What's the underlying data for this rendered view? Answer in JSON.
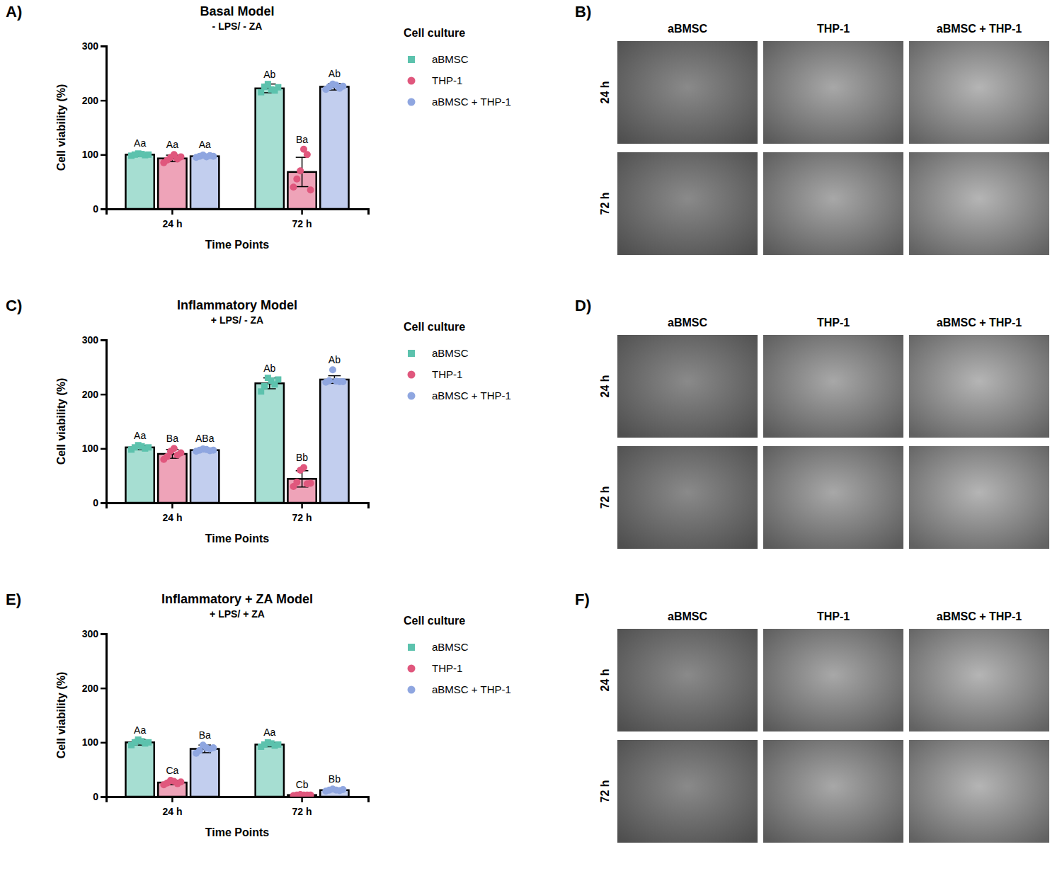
{
  "chart_data": [
    {
      "type": "bar",
      "letter": "A)",
      "title": "Basal Model",
      "subtitle": "- LPS/ - ZA",
      "x_label": "Time Points",
      "y_label": "Cell viability (%)",
      "categories": [
        "24 h",
        "72 h"
      ],
      "ylim": [
        0,
        300
      ],
      "yticks": [
        0,
        100,
        200,
        300
      ],
      "grid": false,
      "legend": "right",
      "legend_title": "Cell culture",
      "series": [
        {
          "name": "aBMSC",
          "color": "#5cc2ad",
          "marker": "square",
          "values": [
            100,
            222
          ],
          "errors": [
            3,
            8
          ],
          "group_labels": [
            "Aa",
            "Ab"
          ],
          "points": [
            [
              98,
              100,
              102,
              101,
              99,
              100
            ],
            [
              215,
              225,
              230,
              220,
              218,
              224
            ]
          ]
        },
        {
          "name": "THP-1",
          "color": "#e0577d",
          "marker": "circle",
          "values": [
            93,
            68
          ],
          "errors": [
            6,
            27
          ],
          "group_labels": [
            "Aa",
            "Ba"
          ],
          "points": [
            [
              85,
              90,
              95,
              100,
              92,
              96
            ],
            [
              40,
              55,
              70,
              110,
              100,
              35
            ]
          ]
        },
        {
          "name": "aBMSC + THP-1",
          "color": "#8fa6e0",
          "marker": "circle",
          "values": [
            97,
            225
          ],
          "errors": [
            3,
            6
          ],
          "group_labels": [
            "Aa",
            "Ab"
          ],
          "points": [
            [
              95,
              97,
              99,
              96,
              98,
              97
            ],
            [
              220,
              225,
              230,
              228,
              222,
              226
            ]
          ]
        }
      ]
    },
    {
      "type": "bar",
      "letter": "C)",
      "title": "Inflammatory Model",
      "subtitle": "+ LPS/ - ZA",
      "x_label": "Time Points",
      "y_label": "Cell viability (%)",
      "categories": [
        "24 h",
        "72 h"
      ],
      "ylim": [
        0,
        300
      ],
      "yticks": [
        0,
        100,
        200,
        300
      ],
      "grid": false,
      "legend": "right",
      "legend_title": "Cell culture",
      "series": [
        {
          "name": "aBMSC",
          "color": "#5cc2ad",
          "marker": "square",
          "values": [
            102,
            220
          ],
          "errors": [
            4,
            10
          ],
          "group_labels": [
            "Aa",
            "Ab"
          ],
          "points": [
            [
              98,
              102,
              106,
              104,
              100,
              102
            ],
            [
              205,
              215,
              230,
              225,
              218,
              227
            ]
          ]
        },
        {
          "name": "THP-1",
          "color": "#e0577d",
          "marker": "circle",
          "values": [
            90,
            44
          ],
          "errors": [
            8,
            15
          ],
          "group_labels": [
            "Ba",
            "Bb"
          ],
          "points": [
            [
              80,
              85,
              95,
              100,
              88,
              92
            ],
            [
              30,
              38,
              60,
              65,
              35,
              36
            ]
          ]
        },
        {
          "name": "aBMSC + THP-1",
          "color": "#8fa6e0",
          "marker": "circle",
          "values": [
            97,
            227
          ],
          "errors": [
            3,
            7
          ],
          "group_labels": [
            "ABa",
            "Ab"
          ],
          "points": [
            [
              95,
              97,
              99,
              98,
              96,
              97
            ],
            [
              222,
              225,
              245,
              224,
              223,
              223
            ]
          ]
        }
      ]
    },
    {
      "type": "bar",
      "letter": "E)",
      "title": "Inflammatory + ZA Model",
      "subtitle": "+ LPS/ + ZA",
      "x_label": "Time Points",
      "y_label": "Cell viability (%)",
      "categories": [
        "24 h",
        "72 h"
      ],
      "ylim": [
        0,
        300
      ],
      "yticks": [
        0,
        100,
        200,
        300
      ],
      "grid": false,
      "legend": "right",
      "legend_title": "Cell culture",
      "series": [
        {
          "name": "aBMSC",
          "color": "#5cc2ad",
          "marker": "square",
          "values": [
            100,
            96
          ],
          "errors": [
            5,
            4
          ],
          "group_labels": [
            "Aa",
            "Aa"
          ],
          "points": [
            [
              95,
              100,
              105,
              102,
              98,
              100
            ],
            [
              92,
              96,
              100,
              98,
              94,
              96
            ]
          ]
        },
        {
          "name": "THP-1",
          "color": "#e0577d",
          "marker": "circle",
          "values": [
            26,
            3
          ],
          "errors": [
            4,
            1
          ],
          "group_labels": [
            "Ca",
            "Cb"
          ],
          "points": [
            [
              22,
              25,
              30,
              28,
              24,
              27
            ],
            [
              2,
              3,
              4,
              3,
              3,
              3
            ]
          ]
        },
        {
          "name": "aBMSC + THP-1",
          "color": "#8fa6e0",
          "marker": "circle",
          "values": [
            88,
            12
          ],
          "errors": [
            7,
            2
          ],
          "group_labels": [
            "Ba",
            "Bb"
          ],
          "points": [
            [
              80,
              85,
              95,
              90,
              88,
              90
            ],
            [
              10,
              12,
              14,
              12,
              11,
              13
            ]
          ]
        }
      ]
    }
  ],
  "image_panels": [
    {
      "letter": "B)",
      "columns": [
        "aBMSC",
        "THP-1",
        "aBMSC + THP-1"
      ],
      "rows": [
        "24 h",
        "72 h"
      ]
    },
    {
      "letter": "D)",
      "columns": [
        "aBMSC",
        "THP-1",
        "aBMSC + THP-1"
      ],
      "rows": [
        "24 h",
        "72 h"
      ]
    },
    {
      "letter": "F)",
      "columns": [
        "aBMSC",
        "THP-1",
        "aBMSC + THP-1"
      ],
      "rows": [
        "24 h",
        "72 h"
      ]
    }
  ]
}
